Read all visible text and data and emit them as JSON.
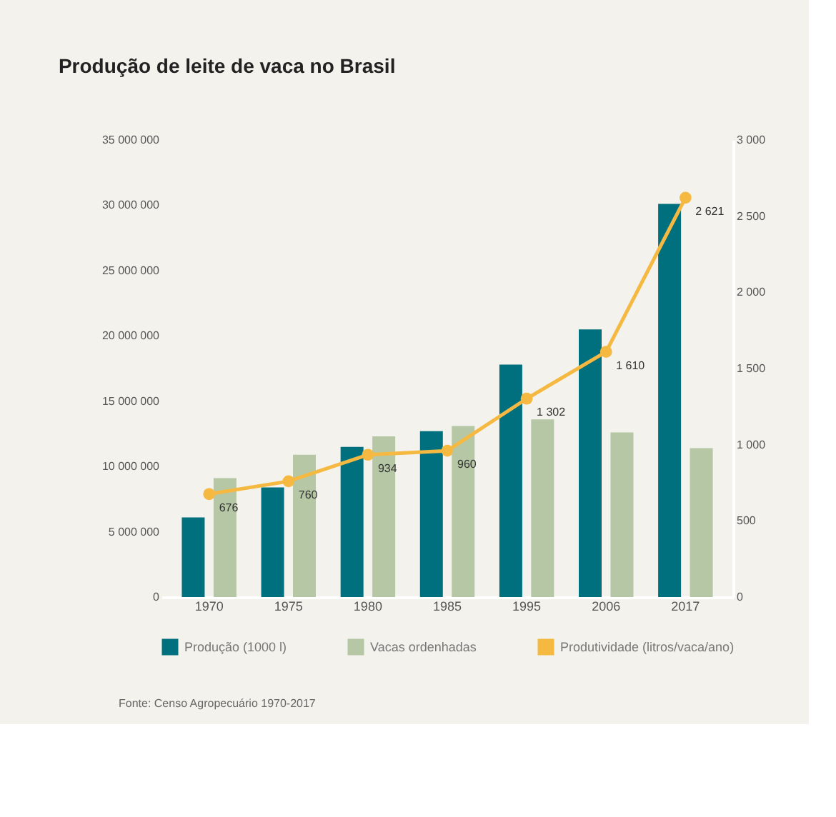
{
  "chart_data": {
    "type": "bar",
    "title": "Produção de leite de vaca no Brasil",
    "categories": [
      "1970",
      "1975",
      "1980",
      "1985",
      "1995",
      "2006",
      "2017"
    ],
    "series": [
      {
        "name": "Produção (1000 l)",
        "color": "#00707f",
        "values": [
          6100000,
          8400000,
          11500000,
          12700000,
          17800000,
          20500000,
          30100000
        ]
      },
      {
        "name": "Vacas ordenhadas",
        "color": "#b5c7a5",
        "values": [
          9100000,
          10900000,
          12300000,
          13100000,
          13600000,
          12600000,
          11400000
        ]
      },
      {
        "name": "Produtividade (litros/vaca/ano)",
        "type": "line",
        "axis": "y2",
        "color": "#f5b942",
        "marker": "circle",
        "values": [
          676,
          760,
          934,
          960,
          1302,
          1610,
          2621
        ],
        "value_labels": [
          "676",
          "760",
          "934",
          "960",
          "1 302",
          "1 610",
          "2 621"
        ]
      }
    ],
    "ylim": [
      0,
      35000000
    ],
    "yticks": [
      0,
      {
        "value": 5000000,
        "label": "5 000 000"
      },
      {
        "value": 10000000,
        "label": "10 000 000"
      },
      {
        "value": 15000000,
        "label": "15 000 000"
      },
      {
        "value": 20000000,
        "label": "20 000 000"
      },
      {
        "value": 25000000,
        "label": "25 000 000"
      },
      {
        "value": 30000000,
        "label": "30 000 000"
      },
      {
        "value": 35000000,
        "label": "35 000 000"
      }
    ],
    "y2lim": [
      0,
      3000
    ],
    "y2ticks": [
      0,
      500,
      {
        "value": 1000,
        "label": "1 000"
      },
      {
        "value": 1500,
        "label": "1 500"
      },
      {
        "value": 2000,
        "label": "2 000"
      },
      {
        "value": 2500,
        "label": "2 500"
      },
      {
        "value": 3000,
        "label": "3 000"
      }
    ],
    "grid": false,
    "legend": "bottom",
    "annotations": [
      "Fonte: Censo Agropecuário 1970-2017"
    ]
  }
}
